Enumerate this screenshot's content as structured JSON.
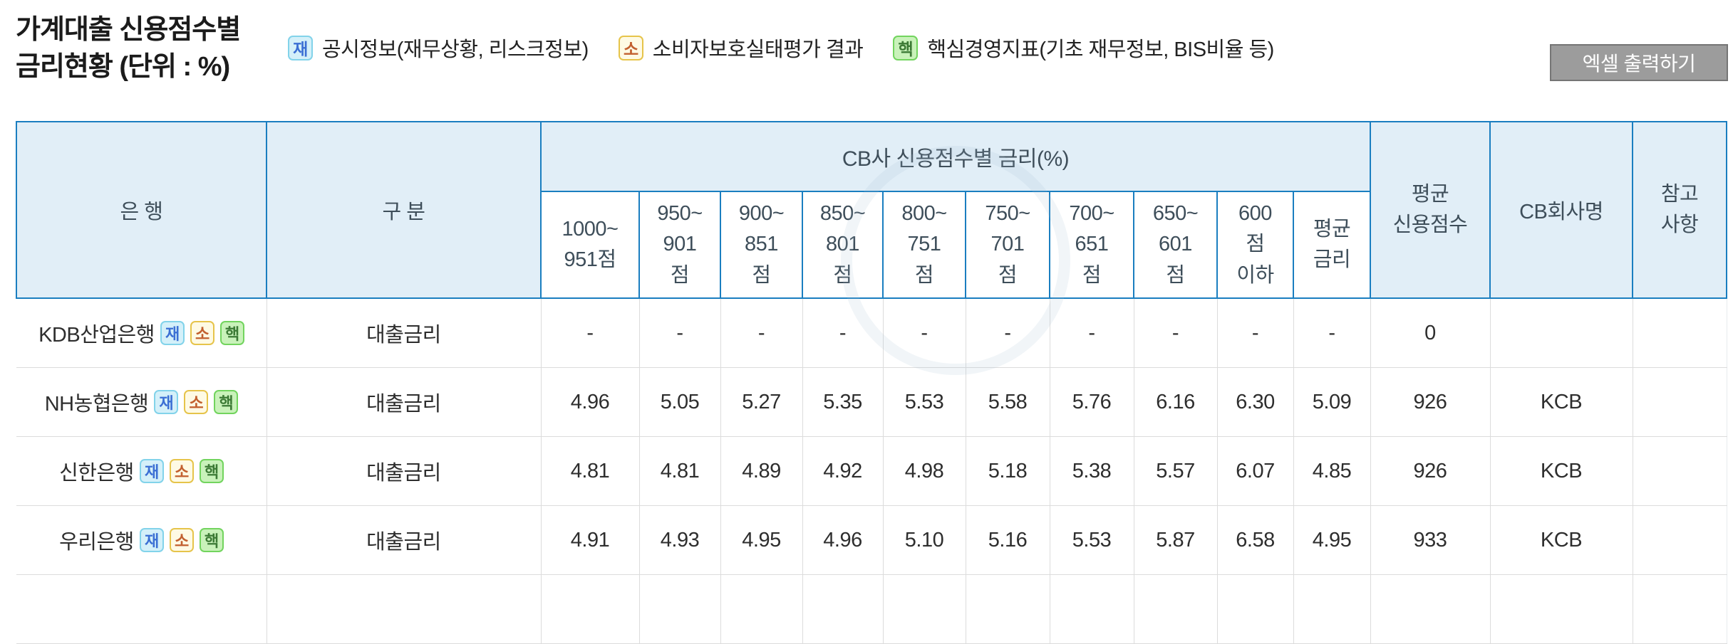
{
  "page": {
    "title_line1": "가계대출 신용점수별",
    "title_line2": "금리현황 (단위 : %)",
    "excel_button_label": "엑셀 출력하기"
  },
  "legend": [
    {
      "id": "financial-disclosure",
      "key": "재",
      "label": "공시정보(재무상황, 리스크정보)"
    },
    {
      "id": "consumer-protection",
      "key": "소",
      "label": "소비자보호실태평가 결과"
    },
    {
      "id": "key-management-indicators",
      "key": "핵",
      "label": "핵심경영지표(기초 재무정보, BIS비율 등)"
    }
  ],
  "table": {
    "group_header": "CB사 신용점수별 금리(%)",
    "col_bank": "은 행",
    "col_category": "구 분",
    "score_cols": [
      "1000~\n951점",
      "950~\n901\n점",
      "900~\n851\n점",
      "850~\n801\n점",
      "800~\n751\n점",
      "750~\n701\n점",
      "700~\n651\n점",
      "650~\n601\n점",
      "600\n점\n이하",
      "평균\n금리"
    ],
    "col_avg_score": "평균\n신용점수",
    "col_cb_name": "CB회사명",
    "col_note": "참고\n사항",
    "rows": [
      {
        "bank": "KDB산업은행",
        "badges": [
          "재",
          "소",
          "핵"
        ],
        "category": "대출금리",
        "rates": [
          "-",
          "-",
          "-",
          "-",
          "-",
          "-",
          "-",
          "-",
          "-",
          "-"
        ],
        "avg_score": "0",
        "cb_company": "",
        "note": ""
      },
      {
        "bank": "NH농협은행",
        "badges": [
          "재",
          "소",
          "핵"
        ],
        "category": "대출금리",
        "rates": [
          "4.96",
          "5.05",
          "5.27",
          "5.35",
          "5.53",
          "5.58",
          "5.76",
          "6.16",
          "6.30",
          "5.09"
        ],
        "avg_score": "926",
        "cb_company": "KCB",
        "note": ""
      },
      {
        "bank": "신한은행",
        "badges": [
          "재",
          "소",
          "핵"
        ],
        "category": "대출금리",
        "rates": [
          "4.81",
          "4.81",
          "4.89",
          "4.92",
          "4.98",
          "5.18",
          "5.38",
          "5.57",
          "6.07",
          "4.85"
        ],
        "avg_score": "926",
        "cb_company": "KCB",
        "note": ""
      },
      {
        "bank": "우리은행",
        "badges": [
          "재",
          "소",
          "핵"
        ],
        "category": "대출금리",
        "rates": [
          "4.91",
          "4.93",
          "4.95",
          "4.96",
          "5.10",
          "5.16",
          "5.53",
          "5.87",
          "6.58",
          "4.95"
        ],
        "avg_score": "933",
        "cb_company": "KCB",
        "note": ""
      }
    ]
  },
  "colors": {
    "header_border_blue": "#1a7ec0",
    "header_bg_blue": "#e1eef7",
    "header_text": "#3e4e5a",
    "body_border_gray": "#dcdcdc",
    "excel_button_bg": "#9c9c9c",
    "badge_jae_bg": "#d4f0f9",
    "badge_jae_border": "#82d3ea",
    "badge_jae_text": "#3b6fd4",
    "badge_so_bg": "#fefae4",
    "badge_so_border": "#e6c44a",
    "badge_so_text": "#c2602f",
    "badge_haek_bg": "#c9f2ba",
    "badge_haek_border": "#72d45e",
    "badge_haek_text": "#3c7a35"
  }
}
